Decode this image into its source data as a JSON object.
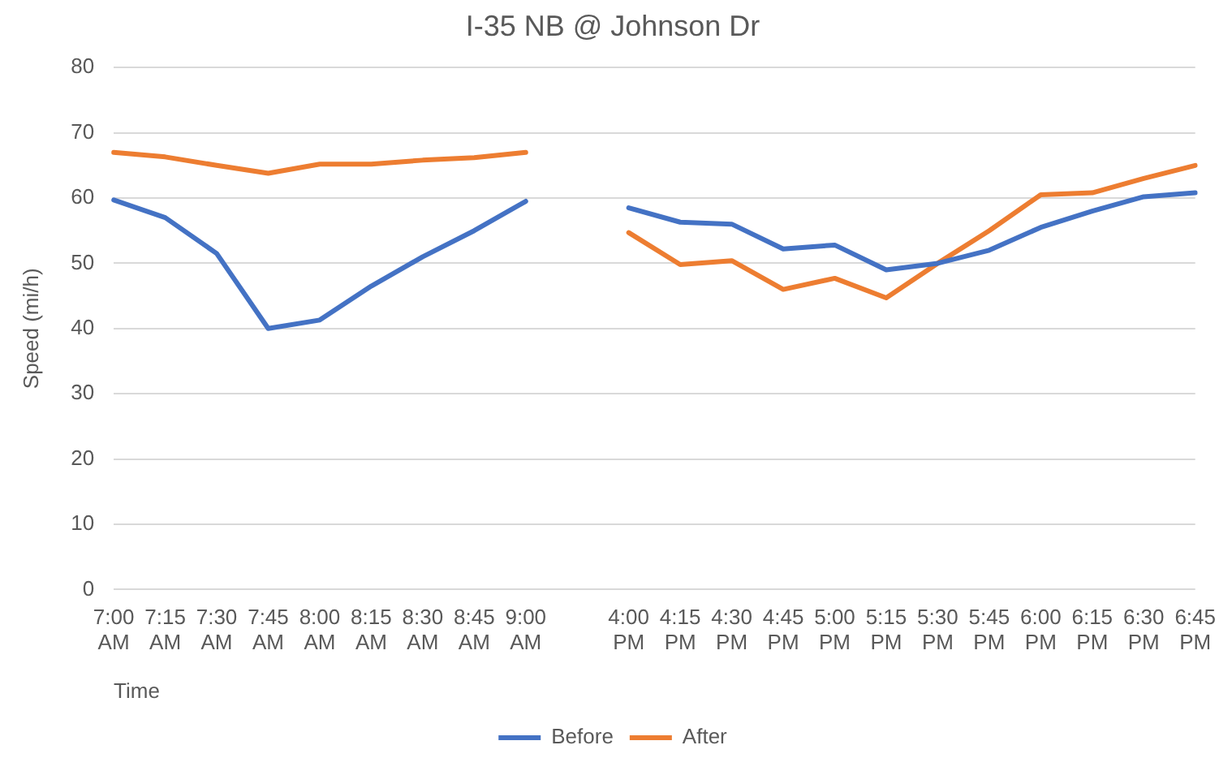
{
  "chart_data": {
    "type": "line",
    "title": "I-35 NB @ Johnson Dr",
    "xlabel": "Time",
    "ylabel": "Speed (mi/h)",
    "categories": [
      "7:00 AM",
      "7:15 AM",
      "7:30 AM",
      "7:45 AM",
      "8:00 AM",
      "8:15 AM",
      "8:30 AM",
      "8:45 AM",
      "9:00 AM",
      null,
      "4:00 PM",
      "4:15 PM",
      "4:30 PM",
      "4:45 PM",
      "5:00 PM",
      "5:15 PM",
      "5:30 PM",
      "5:45 PM",
      "6:00 PM",
      "6:15 PM",
      "6:30 PM",
      "6:45 PM"
    ],
    "series": [
      {
        "name": "Before",
        "color": "#4472c4",
        "values": [
          59.7,
          57,
          51.5,
          40,
          41.3,
          46.5,
          51,
          55,
          59.5,
          null,
          58.5,
          56.3,
          56,
          52.2,
          52.8,
          49,
          50,
          52,
          55.5,
          58,
          60.2,
          60.8
        ]
      },
      {
        "name": "After",
        "color": "#ed7d31",
        "values": [
          67,
          66.3,
          65,
          63.8,
          65.2,
          65.2,
          65.8,
          66.2,
          67,
          null,
          54.7,
          49.8,
          50.4,
          46,
          47.7,
          44.7,
          50,
          55,
          60.5,
          60.8,
          63,
          65
        ]
      }
    ],
    "ylim": [
      0,
      80
    ],
    "yticks": [
      0,
      10,
      20,
      30,
      40,
      50,
      60,
      70,
      80
    ],
    "grid": "y",
    "legend": "bottom",
    "marker": "none",
    "line_style": "solid"
  }
}
